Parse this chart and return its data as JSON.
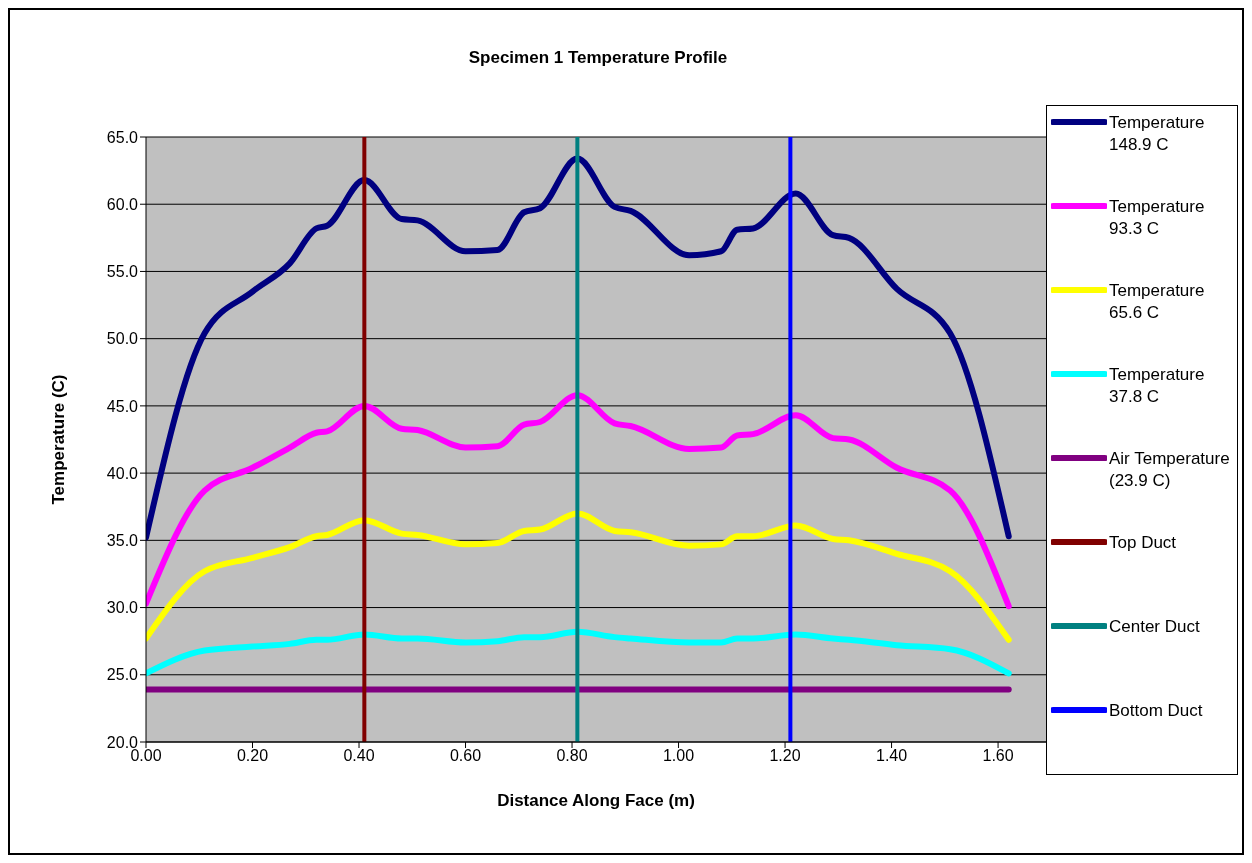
{
  "chart_data": {
    "type": "line",
    "title": "Specimen 1 Temperature Profile",
    "xlabel": "Distance Along Face (m)",
    "ylabel": "Temperature (C)",
    "x": [
      0,
      0.11,
      0.2,
      0.27,
      0.32,
      0.34,
      0.41,
      0.48,
      0.51,
      0.6,
      0.66,
      0.71,
      0.74,
      0.81,
      0.88,
      0.91,
      1.02,
      1.08,
      1.11,
      1.14,
      1.22,
      1.29,
      1.32,
      1.41,
      1.51,
      1.62
    ],
    "series": [
      {
        "name": "Temperature 148.9 C",
        "color": "#000080",
        "values": [
          35.2,
          50.4,
          53.5,
          55.6,
          58.2,
          58.4,
          61.8,
          58.9,
          58.8,
          56.5,
          56.6,
          59.4,
          59.7,
          63.4,
          59.8,
          59.5,
          56.2,
          56.5,
          58.1,
          58.2,
          60.8,
          57.7,
          57.5,
          53.7,
          50.4,
          35.3
        ]
      },
      {
        "name": "Temperature 93.3 C",
        "color": "#ff00ff",
        "values": [
          30.3,
          38.7,
          40.4,
          41.9,
          43.0,
          43.1,
          45.0,
          43.3,
          43.2,
          41.9,
          42.0,
          43.6,
          43.8,
          45.8,
          43.7,
          43.5,
          41.8,
          41.9,
          42.8,
          42.9,
          44.3,
          42.6,
          42.5,
          40.4,
          38.7,
          30.1
        ]
      },
      {
        "name": "Temperature 65.6 C",
        "color": "#ffff00",
        "values": [
          27.7,
          32.7,
          33.7,
          34.5,
          35.3,
          35.4,
          36.5,
          35.5,
          35.4,
          34.7,
          34.8,
          35.7,
          35.8,
          37.0,
          35.7,
          35.6,
          34.6,
          34.7,
          35.3,
          35.3,
          36.1,
          35.1,
          35.0,
          34.0,
          32.7,
          27.6
        ]
      },
      {
        "name": "Temperature 37.8 C",
        "color": "#00ffff",
        "values": [
          25.1,
          26.8,
          27.1,
          27.3,
          27.6,
          27.6,
          28.0,
          27.7,
          27.7,
          27.4,
          27.5,
          27.8,
          27.8,
          28.2,
          27.8,
          27.7,
          27.4,
          27.4,
          27.7,
          27.7,
          28.0,
          27.7,
          27.6,
          27.2,
          26.9,
          25.1
        ]
      },
      {
        "name": "Air Temperature (23.9 C)",
        "color": "#800080",
        "x": [
          0,
          1.62
        ],
        "values": [
          23.9,
          23.9
        ]
      },
      {
        "name": "Top Duct",
        "color": "#800000",
        "x": [
          0.41,
          0.41
        ],
        "values": [
          20,
          65
        ]
      },
      {
        "name": "Center Duct",
        "color": "#008080",
        "x": [
          0.81,
          0.81
        ],
        "values": [
          20,
          65
        ]
      },
      {
        "name": "Bottom Duct",
        "color": "#0000ff",
        "x": [
          1.21,
          1.21
        ],
        "values": [
          20,
          65
        ]
      }
    ],
    "xlim": [
      0,
      1.69
    ],
    "xticks": [
      {
        "value": 0,
        "label": "0.00"
      },
      {
        "value": 0.2,
        "label": "0.20"
      },
      {
        "value": 0.4,
        "label": "0.40"
      },
      {
        "value": 0.6,
        "label": "0.60"
      },
      {
        "value": 0.8,
        "label": "0.80"
      },
      {
        "value": 1.0,
        "label": "1.00"
      },
      {
        "value": 1.2,
        "label": "1.20"
      },
      {
        "value": 1.4,
        "label": "1.40"
      },
      {
        "value": 1.6,
        "label": "1.60"
      }
    ],
    "ylim": [
      20,
      65
    ],
    "yticks": [
      {
        "value": 20,
        "label": "20.0"
      },
      {
        "value": 25,
        "label": "25.0"
      },
      {
        "value": 30,
        "label": "30.0"
      },
      {
        "value": 35,
        "label": "35.0"
      },
      {
        "value": 40,
        "label": "40.0"
      },
      {
        "value": 45,
        "label": "45.0"
      },
      {
        "value": 50,
        "label": "50.0"
      },
      {
        "value": 55,
        "label": "55.0"
      },
      {
        "value": 60,
        "label": "60.0"
      },
      {
        "value": 65,
        "label": "65.0"
      }
    ],
    "grid": "y",
    "legend": "right",
    "marker": "none"
  }
}
